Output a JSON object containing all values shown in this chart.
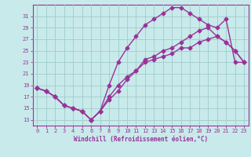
{
  "xlabel": "Windchill (Refroidissement éolien,°C)",
  "ylabel": "",
  "xlim": [
    -0.5,
    23.5
  ],
  "ylim": [
    12,
    33
  ],
  "yticks": [
    13,
    15,
    17,
    19,
    21,
    23,
    25,
    27,
    29,
    31
  ],
  "xticks": [
    0,
    1,
    2,
    3,
    4,
    5,
    6,
    7,
    8,
    9,
    10,
    11,
    12,
    13,
    14,
    15,
    16,
    17,
    18,
    19,
    20,
    21,
    22,
    23
  ],
  "bg_color": "#c8eaea",
  "grid_color": "#a0cccc",
  "line_color": "#993399",
  "line1_x": [
    0,
    1,
    2,
    3,
    4,
    5,
    6,
    7,
    8,
    9,
    10,
    11,
    12,
    13,
    14,
    15,
    16,
    17,
    18,
    19,
    20,
    21,
    22,
    23
  ],
  "line1_y": [
    18.5,
    18.0,
    17.0,
    15.5,
    15.0,
    14.5,
    13.0,
    14.5,
    19.0,
    23.0,
    25.5,
    27.5,
    29.5,
    30.5,
    31.5,
    32.5,
    32.5,
    31.5,
    30.5,
    29.5,
    29.0,
    30.5,
    23.0,
    23.0
  ],
  "line2_x": [
    0,
    1,
    2,
    3,
    4,
    5,
    6,
    7,
    8,
    9,
    10,
    11,
    12,
    13,
    14,
    15,
    16,
    17,
    18,
    19,
    20,
    21,
    22,
    23
  ],
  "line2_y": [
    18.5,
    18.0,
    17.0,
    15.5,
    15.0,
    14.5,
    13.0,
    14.5,
    16.5,
    18.0,
    20.0,
    21.5,
    23.5,
    24.0,
    25.0,
    25.5,
    26.5,
    27.5,
    28.5,
    29.0,
    27.5,
    26.5,
    25.0,
    23.0
  ],
  "line3_x": [
    0,
    1,
    2,
    3,
    4,
    5,
    6,
    7,
    8,
    9,
    10,
    11,
    12,
    13,
    14,
    15,
    16,
    17,
    18,
    19,
    20,
    21,
    22,
    23
  ],
  "line3_y": [
    18.5,
    18.0,
    17.0,
    15.5,
    15.0,
    14.5,
    13.0,
    14.5,
    17.0,
    19.0,
    20.5,
    21.5,
    23.0,
    23.5,
    24.0,
    24.5,
    25.5,
    25.5,
    26.5,
    27.0,
    27.5,
    26.5,
    25.0,
    23.0
  ],
  "marker": "D",
  "marker_size": 2.5,
  "line_width": 1.0
}
